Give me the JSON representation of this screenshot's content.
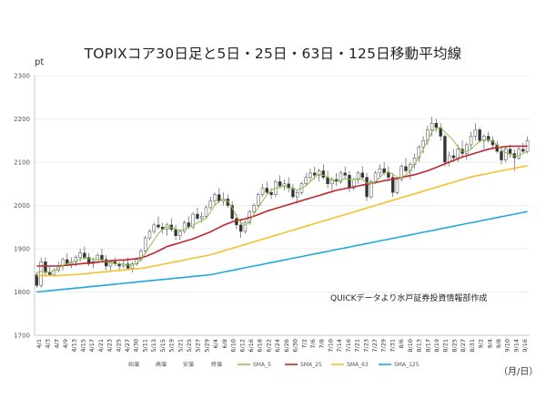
{
  "chart_data": {
    "type": "candlestick",
    "title": "TOPIXコア30日足と5日・25日・63日・125日移動平均線",
    "ylabel": "pt",
    "xlabel": "（月/日）",
    "ylim": [
      1700,
      2300
    ],
    "yticks": [
      1700,
      1800,
      1900,
      2000,
      2100,
      2200,
      2300
    ],
    "x_tick_labels": [
      "4/1",
      "4/3",
      "4/7",
      "4/9",
      "4/13",
      "4/15",
      "4/17",
      "4/21",
      "4/23",
      "4/25",
      "4/27",
      "4/30",
      "5/11",
      "5/13",
      "5/15",
      "5/19",
      "5/21",
      "5/25",
      "5/27",
      "5/29",
      "6/4",
      "6/8",
      "6/10",
      "6/12",
      "6/16",
      "6/18",
      "6/22",
      "6/24",
      "6/26",
      "6/30",
      "7/2",
      "7/6",
      "7/8",
      "7/10",
      "7/14",
      "7/16",
      "7/21",
      "7/23",
      "7/27",
      "7/29",
      "7/31",
      "8/6",
      "8/10",
      "8/13",
      "8/17",
      "8/19",
      "8/21",
      "8/25",
      "8/27",
      "8/31",
      "9/2",
      "9/4",
      "9/8",
      "9/10",
      "9/14",
      "9/16"
    ],
    "legend": [
      "始値",
      "高値",
      "安値",
      "終値",
      "SMA_5",
      "SMA_25",
      "SMA_63",
      "SMA_125"
    ],
    "legend_position": "bottom",
    "grid": true,
    "annotation": "QUICKデータより水戸証券投資情報部作成",
    "colors": {
      "SMA_5": "#8dc04a",
      "SMA_25": "#c0272d",
      "SMA_63": "#f2c230",
      "SMA_125": "#1fa8dc",
      "up": "#ffffff",
      "down": "#333333"
    },
    "ohlc": [
      [
        1840,
        1845,
        1810,
        1815
      ],
      [
        1815,
        1880,
        1810,
        1870
      ],
      [
        1870,
        1880,
        1835,
        1845
      ],
      [
        1845,
        1860,
        1838,
        1840
      ],
      [
        1840,
        1855,
        1835,
        1850
      ],
      [
        1850,
        1870,
        1845,
        1860
      ],
      [
        1860,
        1880,
        1850,
        1875
      ],
      [
        1875,
        1890,
        1860,
        1865
      ],
      [
        1865,
        1880,
        1855,
        1870
      ],
      [
        1870,
        1885,
        1860,
        1880
      ],
      [
        1880,
        1900,
        1870,
        1890
      ],
      [
        1890,
        1905,
        1875,
        1880
      ],
      [
        1880,
        1890,
        1860,
        1865
      ],
      [
        1865,
        1880,
        1855,
        1870
      ],
      [
        1870,
        1890,
        1865,
        1885
      ],
      [
        1885,
        1900,
        1870,
        1875
      ],
      [
        1875,
        1885,
        1850,
        1860
      ],
      [
        1860,
        1875,
        1850,
        1870
      ],
      [
        1870,
        1880,
        1860,
        1865
      ],
      [
        1865,
        1870,
        1850,
        1860
      ],
      [
        1860,
        1875,
        1855,
        1865
      ],
      [
        1865,
        1880,
        1850,
        1855
      ],
      [
        1855,
        1870,
        1845,
        1865
      ],
      [
        1865,
        1880,
        1860,
        1875
      ],
      [
        1875,
        1900,
        1870,
        1895
      ],
      [
        1895,
        1930,
        1890,
        1925
      ],
      [
        1925,
        1945,
        1920,
        1940
      ],
      [
        1940,
        1960,
        1935,
        1955
      ],
      [
        1955,
        1975,
        1945,
        1950
      ],
      [
        1950,
        1960,
        1935,
        1945
      ],
      [
        1945,
        1960,
        1930,
        1955
      ],
      [
        1955,
        1970,
        1940,
        1945
      ],
      [
        1945,
        1955,
        1920,
        1930
      ],
      [
        1930,
        1945,
        1920,
        1940
      ],
      [
        1940,
        1965,
        1935,
        1960
      ],
      [
        1960,
        1975,
        1945,
        1950
      ],
      [
        1950,
        1985,
        1945,
        1980
      ],
      [
        1980,
        1995,
        1965,
        1970
      ],
      [
        1970,
        1985,
        1960,
        1975
      ],
      [
        1975,
        2000,
        1970,
        1995
      ],
      [
        1995,
        2020,
        1990,
        2010
      ],
      [
        2010,
        2030,
        2000,
        2025
      ],
      [
        2025,
        2040,
        2005,
        2010
      ],
      [
        2010,
        2030,
        2000,
        2015
      ],
      [
        2015,
        2025,
        1995,
        2000
      ],
      [
        2000,
        2010,
        1965,
        1970
      ],
      [
        1970,
        1980,
        1945,
        1955
      ],
      [
        1955,
        1965,
        1925,
        1940
      ],
      [
        1940,
        1965,
        1935,
        1960
      ],
      [
        1960,
        1990,
        1955,
        1985
      ],
      [
        1985,
        2005,
        1980,
        2000
      ],
      [
        2000,
        2030,
        1995,
        2025
      ],
      [
        2025,
        2050,
        2020,
        2040
      ],
      [
        2040,
        2055,
        2025,
        2030
      ],
      [
        2030,
        2040,
        2015,
        2025
      ],
      [
        2025,
        2060,
        2020,
        2055
      ],
      [
        2055,
        2070,
        2040,
        2045
      ],
      [
        2045,
        2060,
        2035,
        2050
      ],
      [
        2050,
        2065,
        2030,
        2040
      ],
      [
        2040,
        2050,
        2015,
        2020
      ],
      [
        2020,
        2035,
        2005,
        2030
      ],
      [
        2030,
        2055,
        2025,
        2050
      ],
      [
        2050,
        2075,
        2045,
        2065
      ],
      [
        2065,
        2085,
        2055,
        2075
      ],
      [
        2075,
        2090,
        2060,
        2070
      ],
      [
        2070,
        2085,
        2055,
        2080
      ],
      [
        2080,
        2095,
        2060,
        2065
      ],
      [
        2065,
        2080,
        2040,
        2050
      ],
      [
        2050,
        2065,
        2035,
        2060
      ],
      [
        2060,
        2075,
        2045,
        2055
      ],
      [
        2055,
        2080,
        2050,
        2075
      ],
      [
        2075,
        2090,
        2060,
        2070
      ],
      [
        2070,
        2080,
        2030,
        2040
      ],
      [
        2040,
        2065,
        2035,
        2060
      ],
      [
        2060,
        2080,
        2050,
        2075
      ],
      [
        2075,
        2090,
        2060,
        2065
      ],
      [
        2065,
        2075,
        2010,
        2020
      ],
      [
        2020,
        2060,
        2015,
        2055
      ],
      [
        2055,
        2080,
        2050,
        2075
      ],
      [
        2075,
        2095,
        2065,
        2085
      ],
      [
        2085,
        2100,
        2070,
        2075
      ],
      [
        2075,
        2090,
        2055,
        2065
      ],
      [
        2065,
        2075,
        2020,
        2030
      ],
      [
        2030,
        2065,
        2025,
        2060
      ],
      [
        2060,
        2095,
        2055,
        2090
      ],
      [
        2090,
        2110,
        2075,
        2080
      ],
      [
        2080,
        2100,
        2060,
        2095
      ],
      [
        2095,
        2120,
        2085,
        2110
      ],
      [
        2110,
        2140,
        2100,
        2135
      ],
      [
        2135,
        2160,
        2120,
        2150
      ],
      [
        2150,
        2185,
        2140,
        2175
      ],
      [
        2175,
        2205,
        2160,
        2190
      ],
      [
        2190,
        2200,
        2170,
        2180
      ],
      [
        2180,
        2190,
        2150,
        2160
      ],
      [
        2160,
        2165,
        2090,
        2100
      ],
      [
        2100,
        2125,
        2090,
        2115
      ],
      [
        2115,
        2130,
        2100,
        2110
      ],
      [
        2110,
        2140,
        2100,
        2130
      ],
      [
        2130,
        2150,
        2110,
        2120
      ],
      [
        2120,
        2145,
        2105,
        2140
      ],
      [
        2140,
        2170,
        2130,
        2160
      ],
      [
        2160,
        2190,
        2150,
        2175
      ],
      [
        2175,
        2180,
        2145,
        2150
      ],
      [
        2150,
        2165,
        2130,
        2160
      ],
      [
        2160,
        2170,
        2145,
        2150
      ],
      [
        2150,
        2160,
        2130,
        2140
      ],
      [
        2140,
        2150,
        2120,
        2125
      ],
      [
        2125,
        2135,
        2095,
        2105
      ],
      [
        2105,
        2135,
        2100,
        2130
      ],
      [
        2130,
        2140,
        2110,
        2120
      ],
      [
        2120,
        2130,
        2080,
        2110
      ],
      [
        2110,
        2135,
        2105,
        2130
      ],
      [
        2130,
        2145,
        2120,
        2125
      ],
      [
        2125,
        2160,
        2120,
        2150
      ]
    ],
    "sma_5": [
      1845,
      1848,
      1846,
      1846,
      1850,
      1855,
      1862,
      1865,
      1869,
      1872,
      1876,
      1878,
      1877,
      1876,
      1876,
      1874,
      1871,
      1867,
      1866,
      1865,
      1864,
      1862,
      1862,
      1866,
      1875,
      1890,
      1905,
      1920,
      1935,
      1945,
      1950,
      1950,
      1945,
      1942,
      1945,
      1950,
      1955,
      1960,
      1965,
      1970,
      1985,
      2000,
      2010,
      2015,
      2010,
      1995,
      1975,
      1960,
      1955,
      1962,
      1980,
      1995,
      2010,
      2025,
      2035,
      2040,
      2042,
      2045,
      2040,
      2038,
      2036,
      2040,
      2045,
      2055,
      2065,
      2072,
      2070,
      2065,
      2058,
      2055,
      2058,
      2062,
      2060,
      2060,
      2062,
      2060,
      2052,
      2050,
      2055,
      2065,
      2075,
      2078,
      2072,
      2065,
      2065,
      2070,
      2080,
      2095,
      2112,
      2130,
      2150,
      2170,
      2178,
      2180,
      2170,
      2160,
      2150,
      2135,
      2125,
      2125,
      2130,
      2140,
      2148,
      2152,
      2152,
      2148,
      2140,
      2130,
      2122,
      2118,
      2115,
      2115,
      2120,
      2125
    ],
    "sma_25": [
      1860,
      1860,
      1860,
      1860,
      1860,
      1860,
      1861,
      1862,
      1863,
      1864,
      1865,
      1866,
      1867,
      1868,
      1869,
      1870,
      1871,
      1872,
      1873,
      1874,
      1874,
      1875,
      1876,
      1877,
      1879,
      1882,
      1886,
      1890,
      1895,
      1900,
      1905,
      1908,
      1911,
      1914,
      1917,
      1920,
      1923,
      1927,
      1931,
      1935,
      1939,
      1944,
      1949,
      1954,
      1958,
      1962,
      1965,
      1967,
      1969,
      1972,
      1975,
      1979,
      1983,
      1987,
      1990,
      1993,
      1996,
      1999,
      2002,
      2005,
      2008,
      2011,
      2014,
      2017,
      2020,
      2023,
      2026,
      2029,
      2032,
      2035,
      2037,
      2039,
      2041,
      2043,
      2045,
      2047,
      2049,
      2051,
      2053,
      2055,
      2057,
      2059,
      2061,
      2063,
      2065,
      2067,
      2069,
      2071,
      2074,
      2077,
      2080,
      2084,
      2088,
      2092,
      2096,
      2100,
      2104,
      2108,
      2112,
      2115,
      2118,
      2121,
      2124,
      2127,
      2130,
      2132,
      2134,
      2135,
      2136,
      2137,
      2137,
      2137,
      2137,
      2137
    ],
    "sma_63": [
      1838,
      1838,
      1838,
      1838,
      1838,
      1838,
      1839,
      1839,
      1840,
      1840,
      1841,
      1842,
      1843,
      1844,
      1845,
      1846,
      1847,
      1848,
      1849,
      1850,
      1851,
      1852,
      1853,
      1854,
      1855,
      1856,
      1858,
      1860,
      1862,
      1864,
      1866,
      1868,
      1870,
      1872,
      1874,
      1876,
      1878,
      1880,
      1882,
      1884,
      1886,
      1889,
      1892,
      1895,
      1898,
      1901,
      1904,
      1907,
      1910,
      1913,
      1916,
      1919,
      1922,
      1925,
      1928,
      1931,
      1934,
      1937,
      1940,
      1943,
      1946,
      1949,
      1952,
      1955,
      1958,
      1961,
      1964,
      1967,
      1970,
      1973,
      1976,
      1979,
      1982,
      1985,
      1988,
      1991,
      1994,
      1997,
      2000,
      2003,
      2006,
      2009,
      2012,
      2015,
      2018,
      2021,
      2024,
      2027,
      2030,
      2033,
      2036,
      2039,
      2042,
      2045,
      2048,
      2051,
      2054,
      2057,
      2060,
      2063,
      2066,
      2068,
      2070,
      2072,
      2074,
      2076,
      2078,
      2080,
      2082,
      2084,
      2086,
      2088,
      2090,
      2092
    ],
    "sma_125": [
      1800,
      1801,
      1802,
      1803,
      1804,
      1805,
      1806,
      1807,
      1808,
      1809,
      1810,
      1811,
      1812,
      1813,
      1814,
      1815,
      1816,
      1817,
      1818,
      1819,
      1820,
      1821,
      1822,
      1823,
      1824,
      1825,
      1826,
      1827,
      1828,
      1829,
      1830,
      1831,
      1832,
      1833,
      1834,
      1835,
      1836,
      1837,
      1838,
      1839,
      1840,
      1842,
      1844,
      1846,
      1848,
      1850,
      1852,
      1854,
      1856,
      1858,
      1860,
      1862,
      1864,
      1866,
      1868,
      1870,
      1872,
      1874,
      1876,
      1878,
      1880,
      1882,
      1884,
      1886,
      1888,
      1890,
      1892,
      1894,
      1896,
      1898,
      1900,
      1902,
      1904,
      1906,
      1908,
      1910,
      1912,
      1914,
      1916,
      1918,
      1920,
      1922,
      1924,
      1926,
      1928,
      1930,
      1932,
      1934,
      1936,
      1938,
      1940,
      1942,
      1944,
      1946,
      1948,
      1950,
      1952,
      1954,
      1956,
      1958,
      1960,
      1962,
      1964,
      1966,
      1968,
      1970,
      1972,
      1974,
      1976,
      1978,
      1980,
      1982,
      1984,
      1986
    ]
  }
}
